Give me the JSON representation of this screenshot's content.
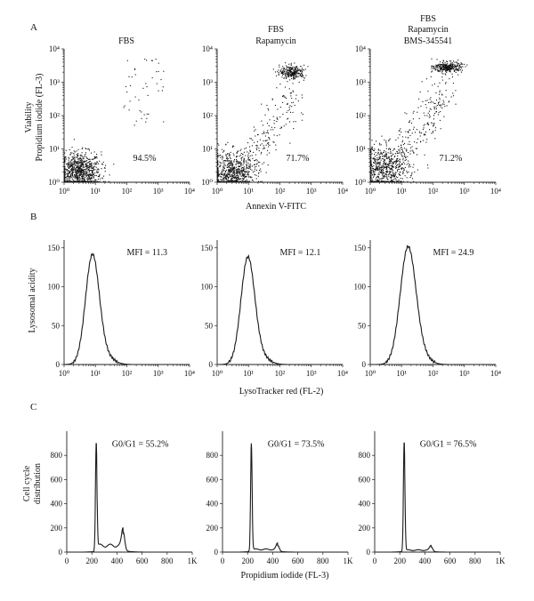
{
  "panel_labels": {
    "A": "A",
    "B": "B",
    "C": "C"
  },
  "row_a": {
    "ylabel_line1": "Viability",
    "ylabel_line2": "Propidium iodide (FL-3)",
    "xlabel": "Annexin V-FITC"
  },
  "row_b": {
    "ylabel": "Lysosomal acidity",
    "xlabel": "LysoTracker red (FL-2)"
  },
  "row_c": {
    "ylabel_line1": "Cell cycle",
    "ylabel_line2": "distribution",
    "xlabel": "Propidium iodide (FL-3)"
  },
  "condition_titles": [
    [
      "FBS"
    ],
    [
      "FBS",
      "Rapamycin"
    ],
    [
      "FBS",
      "Rapamycin",
      "BMS-345541"
    ]
  ],
  "chart_data": [
    {
      "type": "scatter",
      "row": "A",
      "title": "FBS",
      "x_scale": "log",
      "y_scale": "log",
      "xlim": [
        1,
        10000
      ],
      "ylim": [
        1,
        10000
      ],
      "x_ticks": [
        "10⁰",
        "10¹",
        "10²",
        "10³",
        "10⁴"
      ],
      "y_ticks": [
        "10⁰",
        "10¹",
        "10²",
        "10³",
        "10⁴"
      ],
      "annotation": "94.5%",
      "clusters": [
        {
          "name": "viable",
          "center": [
            3,
            2
          ],
          "spread_decades": [
            0.35,
            0.3
          ],
          "count": 850
        },
        {
          "name": "dead",
          "x_range": [
            80,
            1500
          ],
          "y_range": [
            50,
            5000
          ],
          "count": 45,
          "shape": "diffuse"
        }
      ]
    },
    {
      "type": "scatter",
      "row": "A",
      "title": "FBS Rapamycin",
      "x_scale": "log",
      "y_scale": "log",
      "xlim": [
        1,
        10000
      ],
      "ylim": [
        1,
        10000
      ],
      "x_ticks": [
        "10⁰",
        "10¹",
        "10²",
        "10³",
        "10⁴"
      ],
      "y_ticks": [
        "10⁰",
        "10¹",
        "10²",
        "10³",
        "10⁴"
      ],
      "annotation": "71.7%",
      "clusters": [
        {
          "name": "viable",
          "center": [
            3,
            2
          ],
          "spread_decades": [
            0.35,
            0.3
          ],
          "count": 650
        },
        {
          "name": "apoptotic-trail",
          "x_range": [
            10,
            300
          ],
          "y_range": [
            3,
            500
          ],
          "count": 180,
          "shape": "diagonal"
        },
        {
          "name": "dead",
          "center": [
            250,
            2000
          ],
          "spread_decades": [
            0.2,
            0.1
          ],
          "count": 260
        }
      ]
    },
    {
      "type": "scatter",
      "row": "A",
      "title": "FBS Rapamycin BMS-345541",
      "x_scale": "log",
      "y_scale": "log",
      "xlim": [
        1,
        10000
      ],
      "ylim": [
        1,
        10000
      ],
      "x_ticks": [
        "10⁰",
        "10¹",
        "10²",
        "10³",
        "10⁴"
      ],
      "y_ticks": [
        "10⁰",
        "10¹",
        "10²",
        "10³",
        "10⁴"
      ],
      "annotation": "71.2%",
      "clusters": [
        {
          "name": "viable",
          "center": [
            3,
            2.5
          ],
          "spread_decades": [
            0.38,
            0.35
          ],
          "count": 620
        },
        {
          "name": "apoptotic-trail",
          "x_range": [
            8,
            300
          ],
          "y_range": [
            5,
            800
          ],
          "count": 220,
          "shape": "diagonal"
        },
        {
          "name": "dead",
          "center": [
            300,
            2800
          ],
          "spread_decades": [
            0.22,
            0.08
          ],
          "count": 300
        }
      ]
    },
    {
      "type": "line",
      "row": "B",
      "x_scale": "log",
      "xlim": [
        1,
        10000
      ],
      "ylim": [
        0,
        160
      ],
      "x_ticks": [
        "10⁰",
        "10¹",
        "10²",
        "10³",
        "10⁴"
      ],
      "y_ticks": [
        "0",
        "50",
        "100",
        "150"
      ],
      "annotation": "MFI = 11.3",
      "peak_x": 8,
      "peak_y": 140,
      "width_decades": 0.22
    },
    {
      "type": "line",
      "row": "B",
      "x_scale": "log",
      "xlim": [
        1,
        10000
      ],
      "ylim": [
        0,
        160
      ],
      "x_ticks": [
        "10⁰",
        "10¹",
        "10²",
        "10³",
        "10⁴"
      ],
      "y_ticks": [
        "0",
        "50",
        "100",
        "150"
      ],
      "annotation": "MFI = 12.1",
      "peak_x": 9.5,
      "peak_y": 137,
      "width_decades": 0.22
    },
    {
      "type": "line",
      "row": "B",
      "x_scale": "log",
      "xlim": [
        1,
        10000
      ],
      "ylim": [
        0,
        160
      ],
      "x_ticks": [
        "10⁰",
        "10¹",
        "10²",
        "10³",
        "10⁴"
      ],
      "y_ticks": [
        "0",
        "50",
        "100",
        "150"
      ],
      "annotation": "MFI = 24.9",
      "peak_x": 16,
      "peak_y": 150,
      "width_decades": 0.25
    },
    {
      "type": "line",
      "row": "C",
      "x_scale": "linear",
      "xlim": [
        0,
        1000
      ],
      "ylim": [
        0,
        1000
      ],
      "x_ticks": [
        "0",
        "200",
        "400",
        "600",
        "800",
        "1K"
      ],
      "y_ticks": [
        "0",
        "200",
        "400",
        "600",
        "800"
      ],
      "annotation": "G0/G1 = 55.2%",
      "g1_x": 235,
      "g1_peak": 910,
      "s_level": 60,
      "g2_x": 450,
      "g2_peak": 150
    },
    {
      "type": "line",
      "row": "C",
      "x_scale": "linear",
      "xlim": [
        0,
        1000
      ],
      "ylim": [
        0,
        1000
      ],
      "x_ticks": [
        "0",
        "200",
        "400",
        "600",
        "800",
        "1K"
      ],
      "y_ticks": [
        "0",
        "200",
        "400",
        "600",
        "800"
      ],
      "annotation": "G0/G1 = 73.5%",
      "g1_x": 230,
      "g1_peak": 900,
      "s_level": 25,
      "g2_x": 440,
      "g2_peak": 50
    },
    {
      "type": "line",
      "row": "C",
      "x_scale": "linear",
      "xlim": [
        0,
        1000
      ],
      "ylim": [
        0,
        1000
      ],
      "x_ticks": [
        "0",
        "200",
        "400",
        "600",
        "800",
        "1K"
      ],
      "y_ticks": [
        "0",
        "200",
        "400",
        "600",
        "800"
      ],
      "annotation": "G0/G1 = 76.5%",
      "g1_x": 235,
      "g1_peak": 915,
      "s_level": 18,
      "g2_x": 450,
      "g2_peak": 40
    }
  ]
}
